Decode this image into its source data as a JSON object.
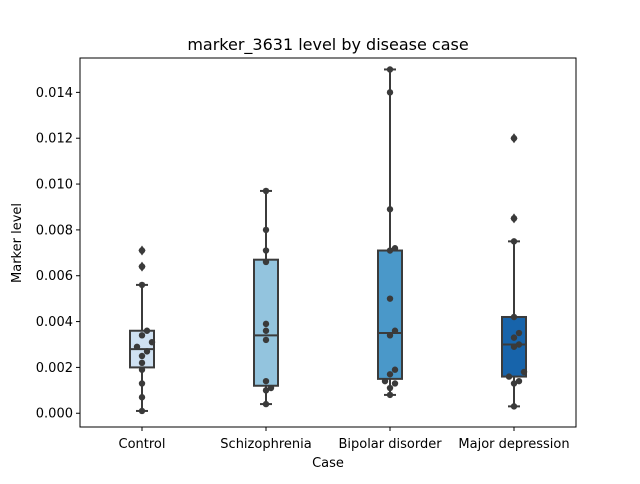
{
  "chart_data": {
    "type": "box",
    "title": "marker_3631 level by disease case",
    "xlabel": "Case",
    "ylabel": "Marker level",
    "ylim": [
      -0.0006,
      0.0155
    ],
    "yticks": [
      "0.000",
      "0.002",
      "0.004",
      "0.006",
      "0.008",
      "0.010",
      "0.012",
      "0.014"
    ],
    "ytick_values": [
      0,
      0.002,
      0.004,
      0.006,
      0.008,
      0.01,
      0.012,
      0.014
    ],
    "categories": [
      "Control",
      "Schizophrenia",
      "Bipolar disorder",
      "Major depression"
    ],
    "boxes": [
      {
        "category": "Control",
        "color": "#cfe1f2",
        "whisker_low": 0.0001,
        "q1": 0.002,
        "median": 0.0028,
        "q3": 0.0036,
        "whisker_high": 0.0056,
        "outliers": [
          0.0064,
          0.0071
        ]
      },
      {
        "category": "Schizophrenia",
        "color": "#93c4de",
        "whisker_low": 0.0004,
        "q1": 0.0012,
        "median": 0.0034,
        "q3": 0.0067,
        "whisker_high": 0.0097,
        "outliers": []
      },
      {
        "category": "Bipolar disorder",
        "color": "#4a98c9",
        "whisker_low": 0.0008,
        "q1": 0.0015,
        "median": 0.0035,
        "q3": 0.0071,
        "whisker_high": 0.015,
        "outliers": []
      },
      {
        "category": "Major depression",
        "color": "#1764ab",
        "whisker_low": 0.0003,
        "q1": 0.0016,
        "median": 0.003,
        "q3": 0.0042,
        "whisker_high": 0.0075,
        "outliers": [
          0.0085,
          0.012
        ]
      }
    ],
    "points": [
      [
        0.0001,
        0.0007,
        0.0013,
        0.0019,
        0.0022,
        0.0025,
        0.0027,
        0.0029,
        0.0031,
        0.0034,
        0.0036,
        0.0056,
        0.0064,
        0.0071
      ],
      [
        0.0004,
        0.001,
        0.0011,
        0.0014,
        0.0032,
        0.0036,
        0.0039,
        0.0066,
        0.0071,
        0.008,
        0.0097
      ],
      [
        0.0008,
        0.0011,
        0.0013,
        0.0014,
        0.0017,
        0.0019,
        0.0034,
        0.0036,
        0.005,
        0.0071,
        0.0072,
        0.0089,
        0.014,
        0.015
      ],
      [
        0.0003,
        0.0013,
        0.0014,
        0.0016,
        0.0018,
        0.0029,
        0.003,
        0.0033,
        0.0035,
        0.0042,
        0.0075,
        0.0085,
        0.012
      ]
    ]
  }
}
